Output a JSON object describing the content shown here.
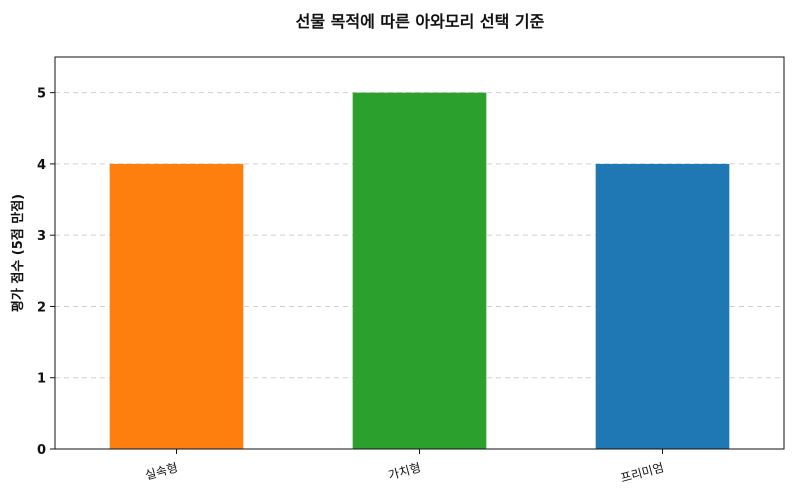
{
  "chart_data": {
    "type": "bar",
    "title": "선물 목적에 따른 아와모리 선택 기준",
    "xlabel": "",
    "ylabel": "평가 점수 (5점 만점)",
    "categories": [
      "실속형",
      "가치형",
      "프리미엄"
    ],
    "values": [
      4,
      5,
      4
    ],
    "colors": [
      "#ff7f0e",
      "#2ca02c",
      "#1f77b4"
    ],
    "ylim": [
      0,
      5.5
    ],
    "yticks": [
      0,
      1,
      2,
      3,
      4,
      5
    ],
    "grid": true,
    "legend": "none"
  }
}
